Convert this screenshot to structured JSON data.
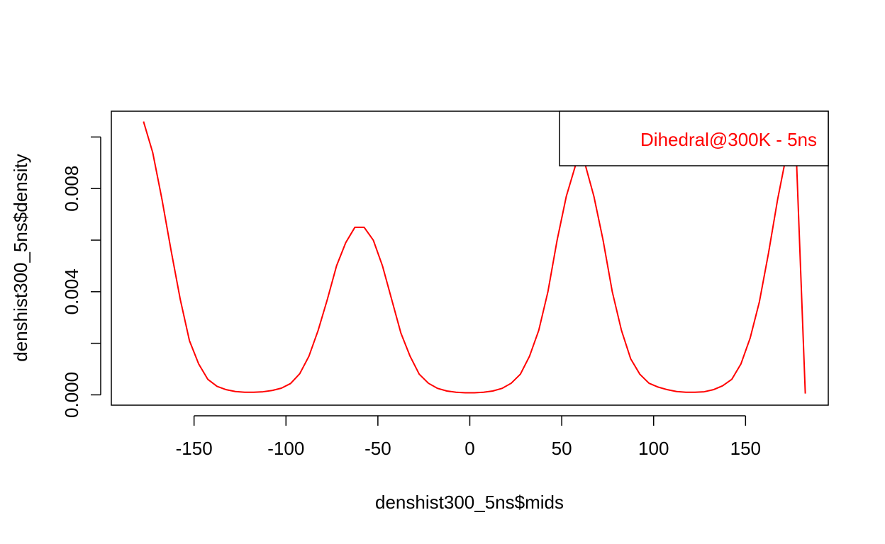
{
  "chart_data": {
    "type": "line",
    "xlabel": "denshist300_5ns$mids",
    "ylabel": "denshist300_5ns$density",
    "xlim": [
      -195,
      195
    ],
    "ylim": [
      -0.0004,
      0.011
    ],
    "xticks": [
      -150,
      -100,
      -50,
      0,
      50,
      100,
      150
    ],
    "xtick_labels": [
      "-150",
      "-100",
      "-50",
      "0",
      "50",
      "100",
      "150"
    ],
    "yticks": [
      0.0,
      0.002,
      0.004,
      0.006,
      0.008,
      0.01
    ],
    "ytick_labels": [
      "0.000",
      "",
      "0.004",
      "",
      "0.008",
      ""
    ],
    "grid": false,
    "legend_position": "top-right",
    "series": [
      {
        "name": "Dihedral@300K - 5ns",
        "color": "#ff0000",
        "x": [
          -177.5,
          -172.5,
          -167.5,
          -162.5,
          -157.5,
          -152.5,
          -147.5,
          -142.5,
          -137.5,
          -132.5,
          -127.5,
          -122.5,
          -117.5,
          -112.5,
          -107.5,
          -102.5,
          -97.5,
          -92.5,
          -87.5,
          -82.5,
          -77.5,
          -72.5,
          -67.5,
          -62.5,
          -57.5,
          -52.5,
          -47.5,
          -42.5,
          -37.5,
          -32.5,
          -27.5,
          -22.5,
          -17.5,
          -12.5,
          -7.5,
          -2.5,
          2.5,
          7.5,
          12.5,
          17.5,
          22.5,
          27.5,
          32.5,
          37.5,
          42.5,
          47.5,
          52.5,
          57.5,
          62.5,
          67.5,
          72.5,
          77.5,
          82.5,
          87.5,
          92.5,
          97.5,
          102.5,
          107.5,
          112.5,
          117.5,
          122.5,
          127.5,
          132.5,
          137.5,
          142.5,
          147.5,
          152.5,
          157.5,
          162.5,
          167.5,
          172.5,
          177.5,
          182.5
        ],
        "y": [
          0.0106,
          0.0094,
          0.0076,
          0.0056,
          0.0037,
          0.0021,
          0.0012,
          0.0006,
          0.00033,
          0.0002,
          0.00013,
          0.0001,
          0.0001,
          0.00012,
          0.00017,
          0.00026,
          0.00044,
          0.00082,
          0.0015,
          0.0025,
          0.0037,
          0.005,
          0.0059,
          0.0065,
          0.0065,
          0.006,
          0.005,
          0.0037,
          0.0024,
          0.0015,
          0.0008,
          0.00045,
          0.00025,
          0.00015,
          0.0001,
          8e-05,
          8e-05,
          0.0001,
          0.00015,
          0.00025,
          0.00045,
          0.0008,
          0.0015,
          0.0025,
          0.004,
          0.006,
          0.0077,
          0.0089,
          0.009,
          0.0077,
          0.006,
          0.004,
          0.0025,
          0.0014,
          0.0008,
          0.00045,
          0.0003,
          0.0002,
          0.00013,
          0.0001,
          0.0001,
          0.00012,
          0.0002,
          0.00035,
          0.0006,
          0.0012,
          0.0022,
          0.0036,
          0.0055,
          0.0076,
          0.0094,
          0.0095,
          5e-05
        ]
      }
    ]
  },
  "legend": {
    "label": "Dihedral@300K - 5ns",
    "color": "#ff0000"
  }
}
